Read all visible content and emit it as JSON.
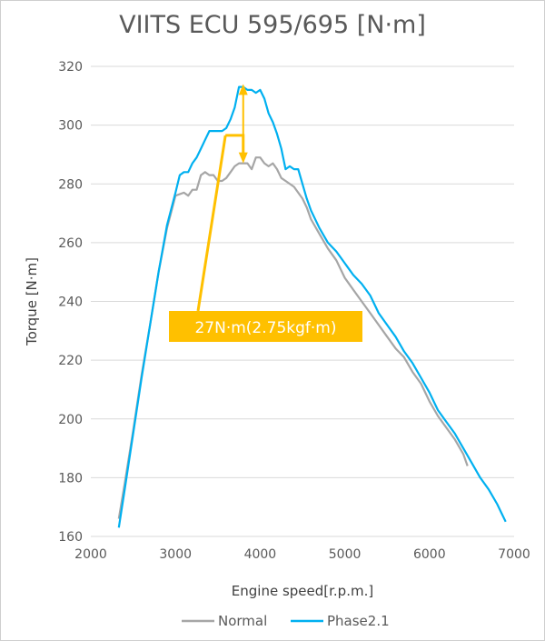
{
  "chart_data": {
    "type": "line",
    "title": "VIITS ECU 595/695 [N·m]",
    "xlabel": "Engine speed[r.p.m.]",
    "ylabel": "Torque [N·m]",
    "xlim": [
      2000,
      7000
    ],
    "ylim": [
      160,
      320
    ],
    "x_ticks": [
      "2000",
      "3000",
      "4000",
      "5000",
      "6000",
      "7000"
    ],
    "y_ticks": [
      "160",
      "180",
      "200",
      "220",
      "240",
      "260",
      "280",
      "300",
      "320"
    ],
    "grid": "horizontal",
    "legend": "bottom",
    "annotation": {
      "text": "27N·m(2.75kgf·m)",
      "color": "#ffc000",
      "from": [
        3800,
        287
      ],
      "to": [
        3800,
        314
      ]
    },
    "series": [
      {
        "name": "Normal",
        "color": "#a6a6a6",
        "points": [
          [
            2330,
            166
          ],
          [
            2400,
            178
          ],
          [
            2500,
            196
          ],
          [
            2600,
            215
          ],
          [
            2700,
            232
          ],
          [
            2800,
            250
          ],
          [
            2900,
            265
          ],
          [
            3000,
            276
          ],
          [
            3100,
            277
          ],
          [
            3150,
            276
          ],
          [
            3200,
            278
          ],
          [
            3250,
            278
          ],
          [
            3300,
            283
          ],
          [
            3350,
            284
          ],
          [
            3400,
            283
          ],
          [
            3450,
            283
          ],
          [
            3500,
            281
          ],
          [
            3550,
            281
          ],
          [
            3600,
            282
          ],
          [
            3650,
            284
          ],
          [
            3700,
            286
          ],
          [
            3750,
            287
          ],
          [
            3800,
            287
          ],
          [
            3850,
            287
          ],
          [
            3900,
            285
          ],
          [
            3950,
            289
          ],
          [
            4000,
            289
          ],
          [
            4050,
            287
          ],
          [
            4100,
            286
          ],
          [
            4150,
            287
          ],
          [
            4200,
            285
          ],
          [
            4250,
            282
          ],
          [
            4300,
            281
          ],
          [
            4400,
            279
          ],
          [
            4500,
            275
          ],
          [
            4550,
            272
          ],
          [
            4600,
            268
          ],
          [
            4700,
            263
          ],
          [
            4800,
            258
          ],
          [
            4900,
            254
          ],
          [
            5000,
            248
          ],
          [
            5100,
            244
          ],
          [
            5200,
            240
          ],
          [
            5300,
            236
          ],
          [
            5400,
            232
          ],
          [
            5500,
            228
          ],
          [
            5600,
            224
          ],
          [
            5700,
            221
          ],
          [
            5800,
            216
          ],
          [
            5900,
            212
          ],
          [
            6000,
            206
          ],
          [
            6100,
            201
          ],
          [
            6200,
            197
          ],
          [
            6300,
            193
          ],
          [
            6400,
            188
          ],
          [
            6450,
            184
          ]
        ]
      },
      {
        "name": "Phase2.1",
        "color": "#00b0f0",
        "points": [
          [
            2330,
            163
          ],
          [
            2400,
            176
          ],
          [
            2500,
            195
          ],
          [
            2600,
            214
          ],
          [
            2700,
            232
          ],
          [
            2800,
            250
          ],
          [
            2900,
            266
          ],
          [
            3000,
            277
          ],
          [
            3050,
            283
          ],
          [
            3100,
            284
          ],
          [
            3150,
            284
          ],
          [
            3200,
            287
          ],
          [
            3250,
            289
          ],
          [
            3300,
            292
          ],
          [
            3350,
            295
          ],
          [
            3400,
            298
          ],
          [
            3450,
            298
          ],
          [
            3500,
            298
          ],
          [
            3550,
            298
          ],
          [
            3600,
            299
          ],
          [
            3650,
            302
          ],
          [
            3700,
            306
          ],
          [
            3750,
            313
          ],
          [
            3800,
            313
          ],
          [
            3850,
            312
          ],
          [
            3900,
            312
          ],
          [
            3950,
            311
          ],
          [
            4000,
            312
          ],
          [
            4050,
            309
          ],
          [
            4100,
            304
          ],
          [
            4150,
            301
          ],
          [
            4200,
            297
          ],
          [
            4250,
            292
          ],
          [
            4300,
            285
          ],
          [
            4350,
            286
          ],
          [
            4400,
            285
          ],
          [
            4450,
            285
          ],
          [
            4500,
            280
          ],
          [
            4550,
            275
          ],
          [
            4600,
            271
          ],
          [
            4700,
            265
          ],
          [
            4800,
            260
          ],
          [
            4900,
            257
          ],
          [
            5000,
            253
          ],
          [
            5100,
            249
          ],
          [
            5200,
            246
          ],
          [
            5300,
            242
          ],
          [
            5400,
            236
          ],
          [
            5500,
            232
          ],
          [
            5600,
            228
          ],
          [
            5700,
            223
          ],
          [
            5800,
            219
          ],
          [
            5900,
            214
          ],
          [
            6000,
            209
          ],
          [
            6100,
            203
          ],
          [
            6200,
            199
          ],
          [
            6300,
            195
          ],
          [
            6400,
            190
          ],
          [
            6500,
            185
          ],
          [
            6600,
            180
          ],
          [
            6700,
            176
          ],
          [
            6800,
            171
          ],
          [
            6850,
            168
          ],
          [
            6900,
            165
          ]
        ]
      }
    ]
  }
}
